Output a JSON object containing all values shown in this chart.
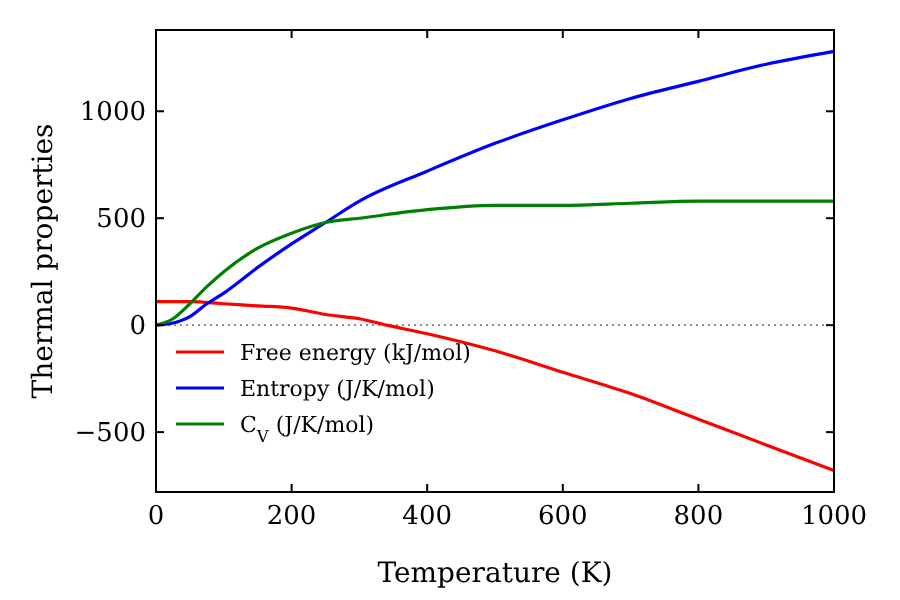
{
  "chart_data": {
    "type": "line",
    "xlabel": "Temperature (K)",
    "ylabel": "Thermal properties",
    "xlim": [
      0,
      1000
    ],
    "ylim": [
      -780,
      1380
    ],
    "xticks": [
      0,
      200,
      400,
      600,
      800,
      1000
    ],
    "yticks": [
      -500,
      0,
      500,
      1000
    ],
    "ref_lines": [
      {
        "axis": "y",
        "value": 0,
        "color": "#808080",
        "line_style": "dotted"
      }
    ],
    "legend": "bottom left",
    "grid": false,
    "line_style": "solid",
    "series": [
      {
        "name": "Free energy (kJ/mol)",
        "color": "#ff0000",
        "x": [
          0,
          50,
          100,
          150,
          200,
          250,
          300,
          340,
          400,
          500,
          600,
          700,
          800,
          900,
          1000
        ],
        "values": [
          110,
          110,
          100,
          90,
          80,
          50,
          30,
          0,
          -40,
          -120,
          -220,
          -320,
          -440,
          -560,
          -680
        ]
      },
      {
        "name": "Entropy (J/K/mol)",
        "color": "#0000ff",
        "x": [
          0,
          25,
          50,
          75,
          100,
          150,
          200,
          250,
          300,
          400,
          500,
          600,
          700,
          800,
          900,
          1000
        ],
        "values": [
          0,
          10,
          40,
          100,
          150,
          270,
          380,
          480,
          580,
          720,
          850,
          960,
          1060,
          1140,
          1220,
          1280
        ]
      },
      {
        "name": "C$_{V}$ (J/K/mol)",
        "color": "#008000",
        "x": [
          0,
          25,
          50,
          75,
          100,
          150,
          200,
          250,
          300,
          400,
          500,
          600,
          700,
          800,
          900,
          1000
        ],
        "values": [
          0,
          30,
          100,
          180,
          250,
          360,
          430,
          480,
          500,
          540,
          560,
          560,
          570,
          580,
          580,
          580
        ]
      }
    ]
  }
}
